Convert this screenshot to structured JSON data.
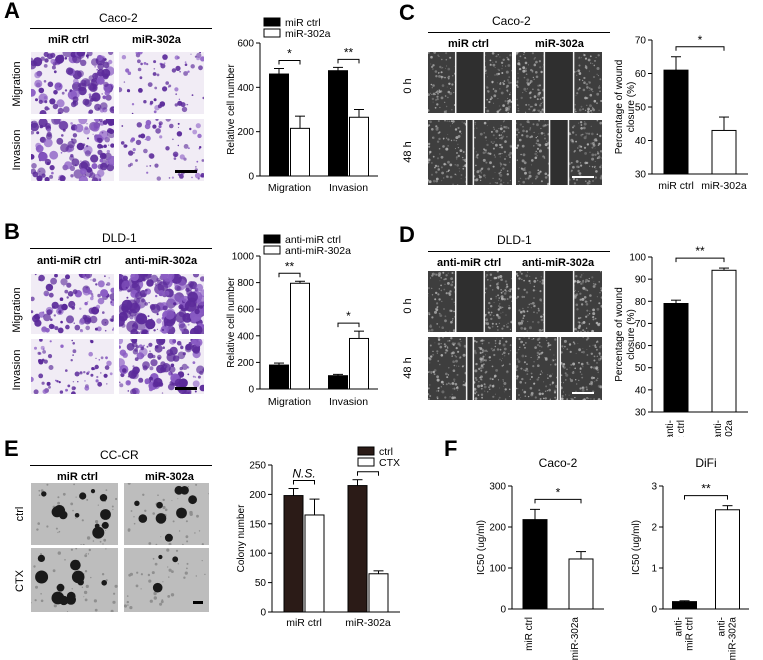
{
  "panels": [
    {
      "letter": "A"
    },
    {
      "letter": "B"
    },
    {
      "letter": "C"
    },
    {
      "letter": "D"
    },
    {
      "letter": "E"
    },
    {
      "letter": "F"
    }
  ],
  "panelA": {
    "cell_line": "Caco-2",
    "cols": [
      "miR ctrl",
      "miR-302a"
    ],
    "rows": [
      "Migration",
      "Invasion"
    ],
    "img_colors": {
      "bg": "#efeaf4",
      "cell": "#6a3aa8"
    }
  },
  "panelB": {
    "cell_line": "DLD-1",
    "cols": [
      "anti-miR ctrl",
      "anti-miR-302a"
    ],
    "rows": [
      "Migration",
      "Invasion"
    ]
  },
  "panelC": {
    "cell_line": "Caco-2",
    "cols": [
      "miR ctrl",
      "miR-302a"
    ],
    "rows": [
      "0 h",
      "48 h"
    ]
  },
  "panelD": {
    "cell_line": "DLD-1",
    "cols": [
      "anti-miR ctrl",
      "anti-miR-302a"
    ],
    "rows": [
      "0 h",
      "48 h"
    ]
  },
  "panelE": {
    "cell_line": "CC-CR",
    "cols": [
      "miR ctrl",
      "miR-302a"
    ],
    "rows": [
      "ctrl",
      "CTX"
    ]
  },
  "chart_data": [
    {
      "id": "A",
      "type": "bar",
      "ylabel": "Relative cell number",
      "ylim": [
        0,
        600
      ],
      "yticks": [
        "0",
        "200",
        "400",
        "600"
      ],
      "categories": [
        "Migration",
        "Invasion"
      ],
      "series": [
        {
          "name": "miR ctrl",
          "values": [
            460,
            475
          ],
          "errors": [
            25,
            15
          ],
          "color": "#000000"
        },
        {
          "name": "miR-302a",
          "values": [
            215,
            265
          ],
          "errors": [
            55,
            35
          ],
          "color": "#ffffff"
        }
      ],
      "significance": [
        "*",
        "**"
      ],
      "legend": "top-right"
    },
    {
      "id": "B",
      "type": "bar",
      "ylabel": "Relative cell number",
      "ylim": [
        0,
        1000
      ],
      "yticks": [
        "0",
        "200",
        "400",
        "600",
        "800",
        "1000"
      ],
      "categories": [
        "Migration",
        "Invasion"
      ],
      "series": [
        {
          "name": "anti-miR ctrl",
          "values": [
            180,
            100
          ],
          "errors": [
            15,
            10
          ],
          "color": "#000000"
        },
        {
          "name": "anti-miR-302a",
          "values": [
            795,
            380
          ],
          "errors": [
            15,
            55
          ],
          "color": "#ffffff"
        }
      ],
      "significance": [
        "**",
        "*"
      ],
      "legend": "top-right"
    },
    {
      "id": "C",
      "type": "bar",
      "ylabel": "Percentage of wound closure (%)",
      "ylim": [
        30,
        70
      ],
      "yticks": [
        "30",
        "40",
        "50",
        "60",
        "70"
      ],
      "categories": [
        "miR ctrl",
        "miR-302a"
      ],
      "values": [
        61,
        43
      ],
      "errors": [
        4,
        4
      ],
      "colors": [
        "#000000",
        "#ffffff"
      ],
      "significance": "*"
    },
    {
      "id": "D",
      "type": "bar",
      "ylabel": "Percentage of wound closure (%)",
      "ylim": [
        30,
        100
      ],
      "yticks": [
        "30",
        "40",
        "50",
        "60",
        "70",
        "80",
        "90",
        "100"
      ],
      "categories": [
        "anti-miR ctrl",
        "anti-miR-302a"
      ],
      "values": [
        79,
        94
      ],
      "errors": [
        1.5,
        1
      ],
      "colors": [
        "#000000",
        "#ffffff"
      ],
      "significance": "**"
    },
    {
      "id": "E",
      "type": "bar",
      "ylabel": "Colony number",
      "ylim": [
        0,
        250
      ],
      "yticks": [
        "0",
        "50",
        "100",
        "150",
        "200",
        "250"
      ],
      "categories": [
        "miR ctrl",
        "miR-302a"
      ],
      "series": [
        {
          "name": "ctrl",
          "values": [
            198,
            215
          ],
          "errors": [
            12,
            10
          ],
          "color": "#2b1b17"
        },
        {
          "name": "CTX",
          "values": [
            165,
            65
          ],
          "errors": [
            27,
            5
          ],
          "color": "#ffffff"
        }
      ],
      "significance": [
        "N.S.",
        "**"
      ],
      "legend": "top-right"
    },
    {
      "id": "F1",
      "type": "bar",
      "title": "Caco-2",
      "ylabel": "IC50 (ug/ml)",
      "ylim": [
        0,
        300
      ],
      "yticks": [
        "0",
        "100",
        "200",
        "300"
      ],
      "categories": [
        "miR ctrl",
        "miR-302a"
      ],
      "values": [
        218,
        122
      ],
      "errors": [
        25,
        18
      ],
      "colors": [
        "#000000",
        "#ffffff"
      ],
      "significance": "*"
    },
    {
      "id": "F2",
      "type": "bar",
      "title": "DiFi",
      "ylabel": "IC50 (ug/ml)",
      "ylim": [
        0,
        3
      ],
      "yticks": [
        "0",
        "1",
        "2",
        "3"
      ],
      "categories": [
        "anti-miR ctrl",
        "anti-miR-302a"
      ],
      "values": [
        0.18,
        2.42
      ],
      "errors": [
        0.02,
        0.1
      ],
      "colors": [
        "#000000",
        "#ffffff"
      ],
      "significance": "**"
    }
  ]
}
